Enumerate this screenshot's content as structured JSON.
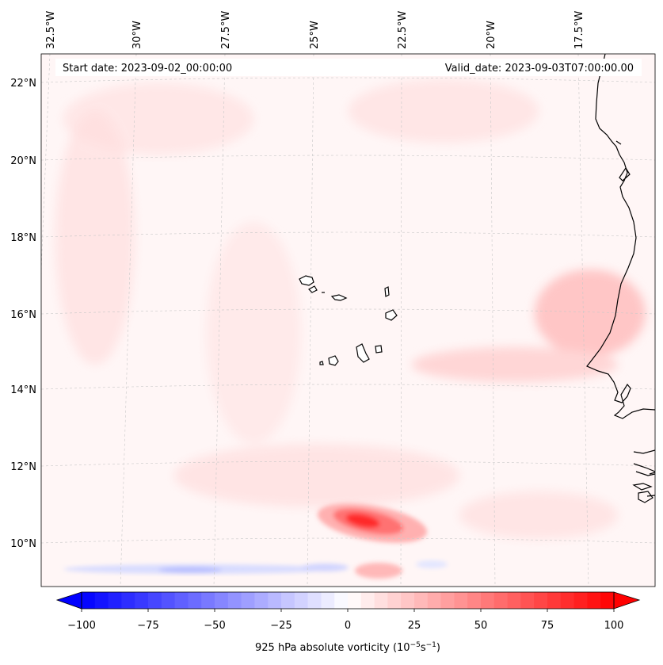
{
  "map": {
    "start_date": "Start date: 2023-09-02_00:00:00",
    "valid_date": "Valid_date: 2023-09-03T07:00:00.00",
    "lon_labels": [
      "32.5°W",
      "30°W",
      "27.5°W",
      "25°W",
      "22.5°W",
      "20°W",
      "17.5°W"
    ],
    "lat_labels": [
      "22°N",
      "20°N",
      "18°N",
      "16°N",
      "14°N",
      "12°N",
      "10°N"
    ],
    "extent": {
      "lon_min": -33.0,
      "lon_max": -15.5,
      "lat_min": 8.8,
      "lat_max": 22.8
    }
  },
  "colorbar": {
    "ticks": [
      "−100",
      "−75",
      "−50",
      "−25",
      "0",
      "25",
      "50",
      "75",
      "100"
    ],
    "min": -100,
    "max": 100,
    "step": 5,
    "label_text": "925 hPa absolute vorticity (10",
    "label_exp1": "−5",
    "label_mid": "s",
    "label_exp2": "−1",
    "label_end": ")",
    "colormap": "bwr"
  },
  "colors": {
    "negative": "#0000ff",
    "zero": "#ffffff",
    "positive": "#ff0000",
    "coastline": "#000000"
  }
}
